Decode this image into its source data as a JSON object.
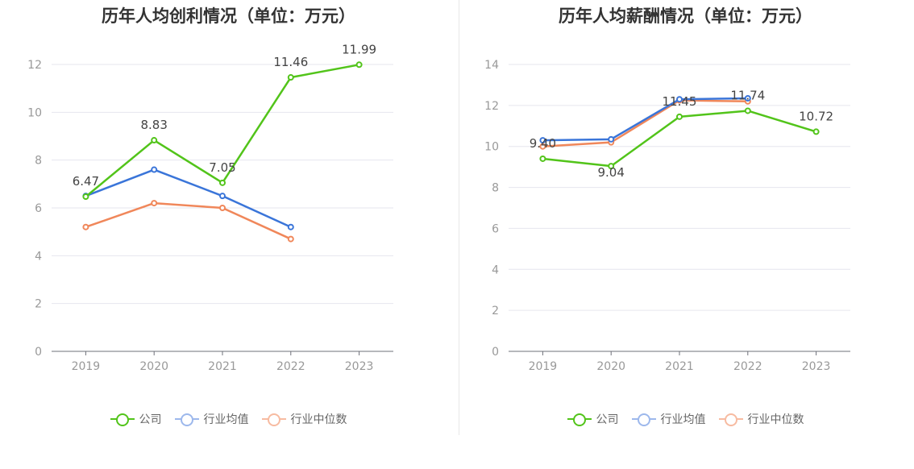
{
  "chart_data": [
    {
      "type": "line",
      "title": "历年人均创利情况（单位：万元）",
      "categories": [
        "2019",
        "2020",
        "2021",
        "2022",
        "2023"
      ],
      "ylim": [
        0,
        12
      ],
      "yticks": [
        0,
        2,
        4,
        6,
        8,
        10,
        12
      ],
      "grid": true,
      "legend_position": "bottom",
      "series": [
        {
          "name": "公司",
          "color": "#52c41a",
          "values": [
            6.47,
            8.83,
            7.05,
            11.46,
            11.99
          ],
          "labels": [
            "6.47",
            "8.83",
            "7.05",
            "11.46",
            "11.99"
          ]
        },
        {
          "name": "行业均值",
          "color": "#3a75d9",
          "values": [
            6.5,
            7.6,
            6.5,
            5.2,
            null
          ]
        },
        {
          "name": "行业中位数",
          "color": "#f0875a",
          "values": [
            5.2,
            6.2,
            6.0,
            4.7,
            null
          ]
        }
      ]
    },
    {
      "type": "line",
      "title": "历年人均薪酬情况（单位：万元）",
      "categories": [
        "2019",
        "2020",
        "2021",
        "2022",
        "2023"
      ],
      "ylim": [
        0,
        14
      ],
      "yticks": [
        0,
        2,
        4,
        6,
        8,
        10,
        12,
        14
      ],
      "grid": true,
      "legend_position": "bottom",
      "series": [
        {
          "name": "公司",
          "color": "#52c41a",
          "values": [
            9.4,
            9.04,
            11.45,
            11.74,
            10.72
          ],
          "labels": [
            "9.40",
            "9.04",
            "11.45",
            "11.74",
            "10.72"
          ]
        },
        {
          "name": "行业均值",
          "color": "#3a75d9",
          "values": [
            10.3,
            10.35,
            12.3,
            12.35,
            null
          ]
        },
        {
          "name": "行业中位数",
          "color": "#f0875a",
          "values": [
            10.0,
            10.2,
            12.25,
            12.2,
            null
          ]
        }
      ]
    }
  ],
  "legend": {
    "items": [
      {
        "label": "公司",
        "color": "#52c41a"
      },
      {
        "label": "行业均值",
        "color": "#3a75d9"
      },
      {
        "label": "行业中位数",
        "color": "#f0875a"
      }
    ]
  }
}
